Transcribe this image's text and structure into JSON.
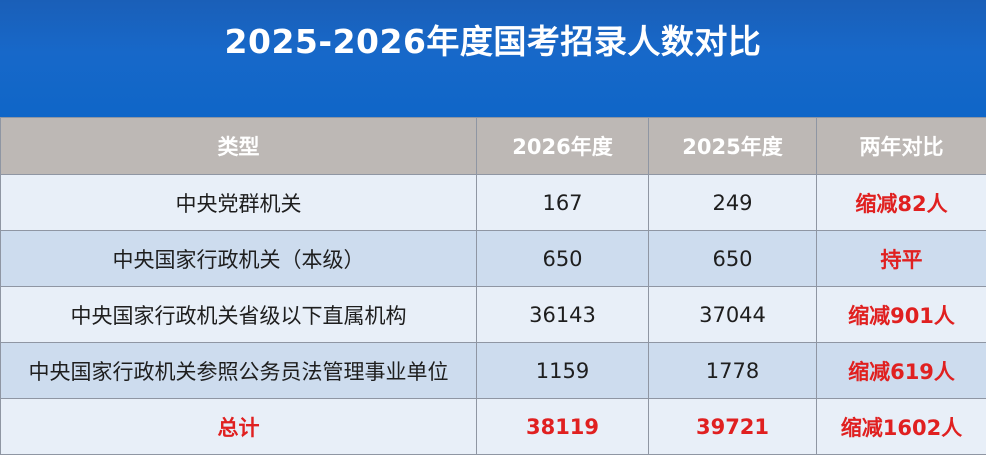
{
  "title": "2025-2026年度国考招录人数对比",
  "chart_data": {
    "type": "table",
    "title": "2025-2026年度国考招录人数对比",
    "columns": [
      "类型",
      "2026年度",
      "2025年度",
      "两年对比"
    ],
    "rows": [
      {
        "category": "中央党群机关",
        "y2026": "167",
        "y2025": "249",
        "comparison": "缩减82人"
      },
      {
        "category": "中央国家行政机关（本级）",
        "y2026": "650",
        "y2025": "650",
        "comparison": "持平"
      },
      {
        "category": "中央国家行政机关省级以下直属机构",
        "y2026": "36143",
        "y2025": "37044",
        "comparison": "缩减901人"
      },
      {
        "category": "中央国家行政机关参照公务员法管理事业单位",
        "y2026": "1159",
        "y2025": "1778",
        "comparison": "缩减619人"
      }
    ],
    "total": {
      "category": "总计",
      "y2026": "38119",
      "y2025": "39721",
      "comparison": "缩减1602人"
    }
  },
  "colors": {
    "banner": "#1768c9",
    "header": "#bdb8b5",
    "row_light": "#e8eff8",
    "row_dark": "#cddcee",
    "highlight_red": "#e02020"
  }
}
